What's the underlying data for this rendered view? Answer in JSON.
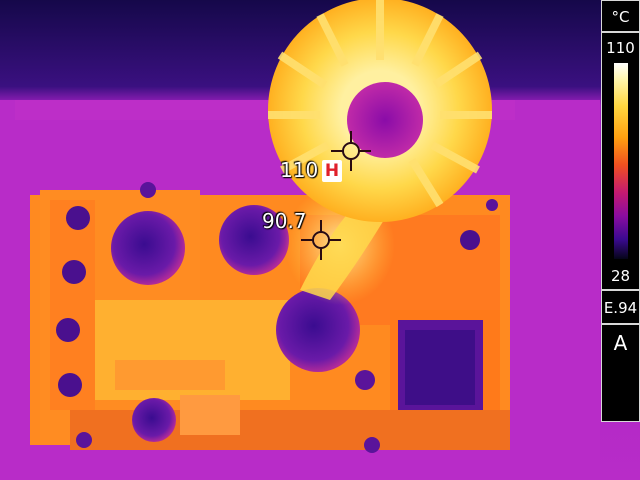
{
  "thermal": {
    "spot_max_value": "110",
    "spot_max_marker": "H",
    "spot_center_value": "90.7"
  },
  "scale": {
    "unit": "°C",
    "max": "110",
    "min": "28"
  },
  "emissivity": "E.94",
  "mode": "A",
  "colors": {
    "background_cold": "#1a0a48",
    "board_purple": "#b428c8",
    "hot_yellow": "#ffd640",
    "peak_white": "#fff8d8",
    "hot_marker_red": "#e0202a"
  }
}
